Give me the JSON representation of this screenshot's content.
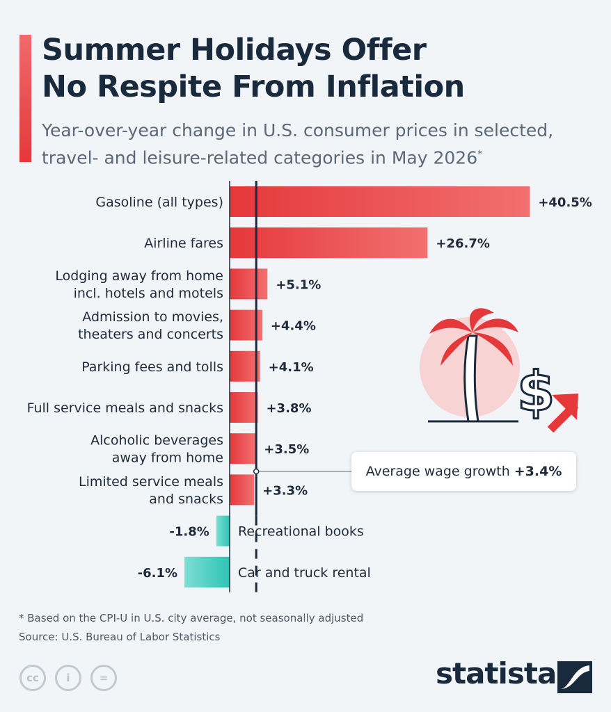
{
  "header": {
    "title_line1": "Summer Holidays Offer",
    "title_line2": "No Respite From Inflation",
    "subtitle_line1": "Year-over-year change in U.S. consumer prices in selected,",
    "subtitle_line2": "travel- and leisure-related categories in May 2026",
    "subtitle_mark": "*"
  },
  "chart_data": {
    "type": "bar",
    "orientation": "horizontal",
    "categories": [
      [
        "Gasoline (all types)"
      ],
      [
        "Airline fares"
      ],
      [
        "Lodging away from home",
        "incl. hotels and motels"
      ],
      [
        "Admission to movies,",
        "theaters and concerts"
      ],
      [
        "Parking fees and tolls"
      ],
      [
        "Full service meals and snacks"
      ],
      [
        "Alcoholic beverages",
        "away from home"
      ],
      [
        "Limited service meals",
        "and snacks"
      ],
      [
        "Recreational books"
      ],
      [
        "Car and truck rental"
      ]
    ],
    "values": [
      40.5,
      26.7,
      5.1,
      4.4,
      4.1,
      3.8,
      3.5,
      3.3,
      -1.8,
      -6.1
    ],
    "value_labels": [
      "+40.5%",
      "+26.7%",
      "+5.1%",
      "+4.4%",
      "+4.1%",
      "+3.8%",
      "+3.5%",
      "+3.3%",
      "-1.8%",
      "-6.1%"
    ],
    "reference_line": {
      "value": 3.4,
      "label": "Average wage growth",
      "value_label": "+3.4%"
    },
    "colors": {
      "positive": "#e5383b",
      "positive_light": "#f27070",
      "negative": "#2ec4b6",
      "negative_light": "#7fded3"
    }
  },
  "footnote": "* Based on the CPI-U in U.S. city average, not seasonally adjusted",
  "source": "Source: U.S. Bureau of Labor Statistics",
  "license_icons": [
    "creative-commons-icon",
    "attribution-icon",
    "no-derivatives-icon"
  ],
  "license_glyphs": [
    "cc",
    "i",
    "="
  ],
  "brand": {
    "name": "statista"
  }
}
